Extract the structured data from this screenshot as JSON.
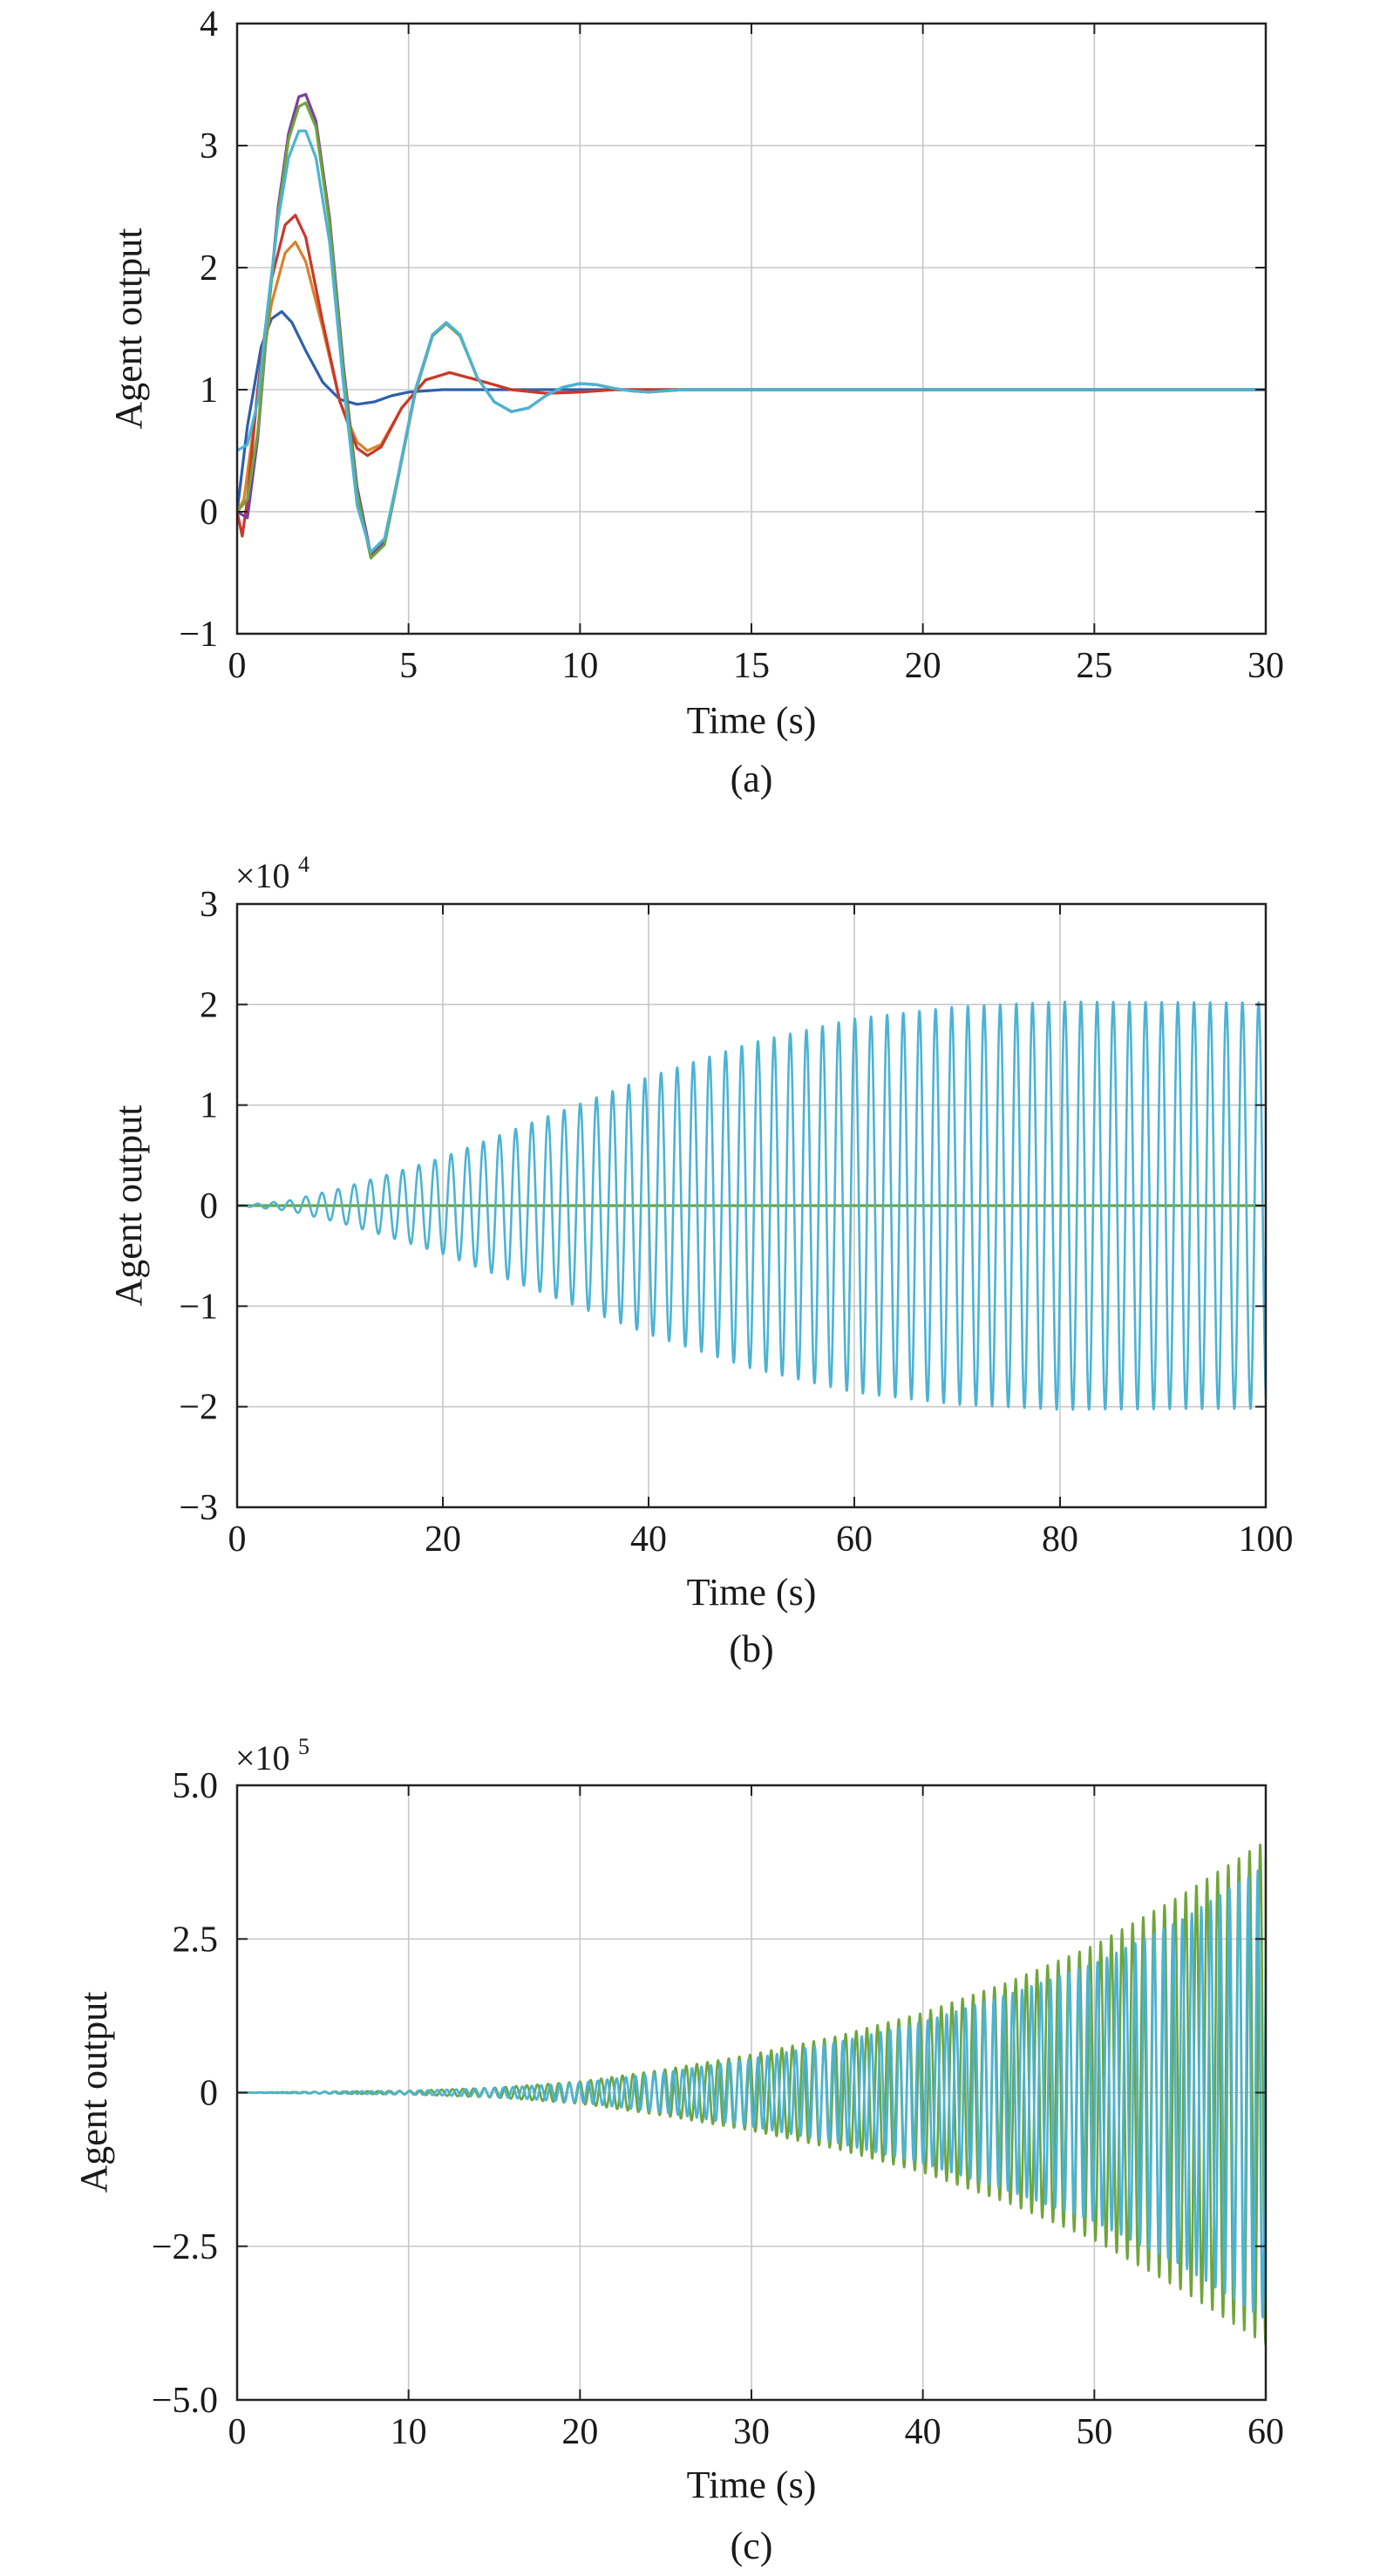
{
  "charts": [
    {
      "caption": "(a)",
      "chart_data": {
        "type": "line",
        "xlabel": "Time (s)",
        "ylabel": "Agent output",
        "xlim": [
          0,
          30
        ],
        "ylim": [
          -1,
          4
        ],
        "xticks": [
          0,
          5,
          10,
          15,
          20,
          25,
          30
        ],
        "xtick_labels": [
          "0",
          "5",
          "10",
          "15",
          "20",
          "25",
          "30"
        ],
        "yticks": [
          -1,
          0,
          1,
          2,
          3,
          4
        ],
        "ytick_labels": [
          "−1",
          "0",
          "1",
          "2",
          "3",
          "4"
        ],
        "multiplier": "",
        "multiplier_exp": "",
        "grid": true,
        "series": [
          {
            "color": "#2f5fae",
            "x": [
              0,
              0.3,
              0.7,
              1.0,
              1.3,
              1.6,
              2.0,
              2.5,
              3.0,
              3.5,
              4.0,
              4.5,
              5.0,
              6.0,
              7.0,
              30
            ],
            "y": [
              0,
              0.7,
              1.35,
              1.58,
              1.64,
              1.55,
              1.32,
              1.06,
              0.92,
              0.88,
              0.9,
              0.95,
              0.98,
              1.0,
              1.0,
              1.0
            ]
          },
          {
            "color": "#d9822b",
            "x": [
              0,
              0.2,
              0.6,
              1.0,
              1.4,
              1.7,
              2.0,
              2.5,
              3.0,
              3.5,
              3.8,
              4.2,
              4.8,
              5.5,
              6.2,
              7.0,
              8.0,
              9.0,
              10.0,
              11.0,
              30
            ],
            "y": [
              0,
              0.1,
              0.95,
              1.7,
              2.12,
              2.21,
              2.05,
              1.5,
              0.9,
              0.57,
              0.5,
              0.55,
              0.85,
              1.08,
              1.14,
              1.08,
              1.0,
              0.97,
              0.98,
              1.0,
              1.0
            ]
          },
          {
            "color": "#c8392b",
            "x": [
              0,
              0.15,
              0.3,
              0.6,
              1.0,
              1.4,
              1.7,
              2.0,
              2.5,
              3.0,
              3.5,
              3.8,
              4.2,
              4.8,
              5.5,
              6.2,
              7.0,
              8.0,
              9.0,
              10.0,
              11.0,
              30
            ],
            "y": [
              0,
              -0.2,
              0.1,
              1.0,
              1.9,
              2.35,
              2.43,
              2.25,
              1.55,
              0.9,
              0.52,
              0.46,
              0.53,
              0.85,
              1.08,
              1.14,
              1.08,
              1.0,
              0.97,
              0.98,
              1.0,
              1.0
            ]
          },
          {
            "color": "#7b3fa1",
            "x": [
              0,
              0.3,
              0.6,
              0.9,
              1.2,
              1.5,
              1.8,
              2.0,
              2.3,
              2.7,
              3.1,
              3.5,
              3.9,
              4.3,
              4.7,
              5.2,
              5.7,
              6.1,
              6.5,
              7.0,
              7.5,
              8.0,
              8.5,
              9.0,
              9.5,
              10.0,
              10.5,
              11.0,
              11.5,
              12.0,
              13.0,
              14.0,
              30
            ],
            "y": [
              0,
              -0.05,
              0.6,
              1.6,
              2.5,
              3.1,
              3.4,
              3.42,
              3.2,
              2.4,
              1.2,
              0.2,
              -0.35,
              -0.25,
              0.3,
              1.0,
              1.45,
              1.55,
              1.45,
              1.1,
              0.9,
              0.82,
              0.85,
              0.95,
              1.02,
              1.05,
              1.04,
              1.01,
              0.99,
              0.98,
              1.0,
              1.0,
              1.0
            ]
          },
          {
            "color": "#6fa53a",
            "x": [
              0,
              0.3,
              0.6,
              0.9,
              1.2,
              1.5,
              1.8,
              2.0,
              2.3,
              2.7,
              3.1,
              3.5,
              3.9,
              4.3,
              4.7,
              5.2,
              5.7,
              6.1,
              6.5,
              7.0,
              7.5,
              8.0,
              8.5,
              9.0,
              9.5,
              10.0,
              10.5,
              11.0,
              11.5,
              12.0,
              13.0,
              14.0,
              30
            ],
            "y": [
              0,
              0.1,
              0.65,
              1.6,
              2.45,
              3.05,
              3.32,
              3.35,
              3.15,
              2.35,
              1.15,
              0.15,
              -0.38,
              -0.27,
              0.28,
              0.98,
              1.44,
              1.54,
              1.44,
              1.1,
              0.9,
              0.82,
              0.85,
              0.95,
              1.02,
              1.05,
              1.04,
              1.01,
              0.99,
              0.98,
              1.0,
              1.0,
              1.0
            ]
          },
          {
            "color": "#4cb3d4",
            "x": [
              0,
              0.3,
              0.6,
              0.9,
              1.2,
              1.5,
              1.8,
              2.0,
              2.3,
              2.7,
              3.1,
              3.5,
              3.9,
              4.3,
              4.7,
              5.2,
              5.7,
              6.1,
              6.5,
              7.0,
              7.5,
              8.0,
              8.5,
              9.0,
              9.5,
              10.0,
              10.5,
              11.0,
              11.5,
              12.0,
              13.0,
              14.0,
              30
            ],
            "y": [
              0.5,
              0.55,
              0.9,
              1.7,
              2.4,
              2.9,
              3.12,
              3.12,
              2.9,
              2.2,
              1.05,
              0.05,
              -0.33,
              -0.22,
              0.3,
              1.0,
              1.45,
              1.55,
              1.45,
              1.1,
              0.9,
              0.82,
              0.85,
              0.95,
              1.02,
              1.05,
              1.04,
              1.01,
              0.99,
              0.98,
              1.0,
              1.0,
              1.0
            ]
          }
        ]
      }
    },
    {
      "caption": "(b)",
      "chart_data": {
        "type": "line",
        "xlabel": "Time (s)",
        "ylabel": "Agent output",
        "xlim": [
          0,
          100
        ],
        "ylim": [
          -3,
          3
        ],
        "xticks": [
          0,
          20,
          40,
          60,
          80,
          100
        ],
        "xtick_labels": [
          "0",
          "20",
          "40",
          "60",
          "80",
          "100"
        ],
        "yticks": [
          -3,
          -2,
          -1,
          0,
          1,
          2,
          3
        ],
        "ytick_labels": [
          "−3",
          "−2",
          "−1",
          "0",
          "1",
          "2",
          "3"
        ],
        "multiplier": "×10",
        "multiplier_exp": "4",
        "grid": true,
        "series": [
          {
            "color": "#6fa53a",
            "style": "flat",
            "value": 0,
            "x_range": [
              0,
              100
            ]
          },
          {
            "color": "#4cb3d4",
            "style": "oscillation",
            "period": 1.57,
            "x_range": [
              0,
              100
            ],
            "end_value": -0.75,
            "envelope_t": [
              0,
              5,
              10,
              15,
              20,
              30,
              40,
              50,
              60,
              70,
              80,
              100
            ],
            "envelope_a": [
              0,
              0.05,
              0.17,
              0.32,
              0.48,
              0.88,
              1.28,
              1.62,
              1.86,
              1.98,
              2.03,
              2.02
            ]
          }
        ]
      }
    },
    {
      "caption": "(c)",
      "chart_data": {
        "type": "line",
        "xlabel": "Time (s)",
        "ylabel": "Agent output",
        "xlim": [
          0,
          60
        ],
        "ylim": [
          -5,
          5
        ],
        "xticks": [
          0,
          10,
          20,
          30,
          40,
          50,
          60
        ],
        "xtick_labels": [
          "0",
          "10",
          "20",
          "30",
          "40",
          "50",
          "60"
        ],
        "yticks": [
          -5,
          -2.5,
          0,
          2.5,
          5
        ],
        "ytick_labels": [
          "−5.0",
          "−2.5",
          "0",
          "2.5",
          "5.0"
        ],
        "multiplier": "×10",
        "multiplier_exp": "5",
        "grid": true,
        "series": [
          {
            "color": "#6fa53a",
            "style": "oscillation",
            "period": 0.62,
            "x_range": [
              0,
              60
            ],
            "end_value": 3.8,
            "envelope_t": [
              0,
              10,
              15,
              20,
              25,
              30,
              35,
              40,
              45,
              50,
              55,
              60
            ],
            "envelope_a": [
              0,
              0.03,
              0.08,
              0.18,
              0.38,
              0.62,
              0.92,
              1.3,
              1.8,
              2.4,
              3.2,
              4.1
            ]
          },
          {
            "color": "#4cb3d4",
            "style": "oscillation",
            "period": 0.55,
            "x_range": [
              0,
              60
            ],
            "end_value": -3.6,
            "envelope_t": [
              0,
              10,
              15,
              20,
              25,
              30,
              35,
              40,
              45,
              50,
              55,
              60
            ],
            "envelope_a": [
              0,
              0.03,
              0.07,
              0.16,
              0.33,
              0.55,
              0.82,
              1.15,
              1.6,
              2.1,
              2.8,
              3.7
            ]
          }
        ]
      }
    }
  ]
}
